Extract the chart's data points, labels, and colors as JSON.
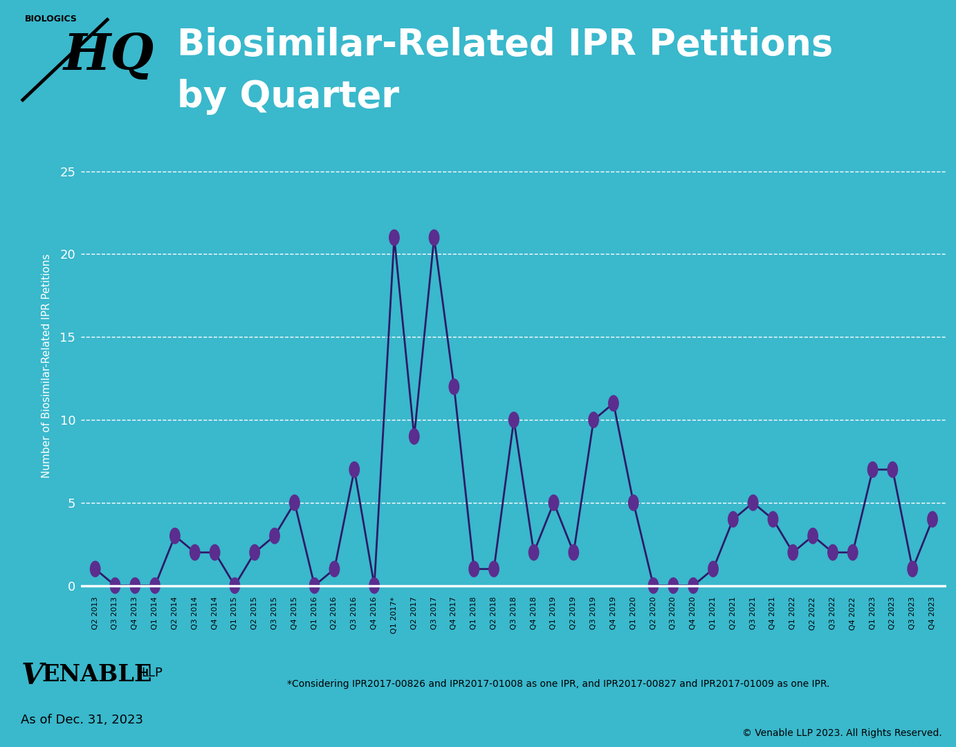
{
  "title_line1": "Biosimilar-Related IPR Petitions",
  "title_line2": "by Quarter",
  "ylabel": "Number of Biosimilar-Related IPR Petitions",
  "bg_color": "#3ab8cc",
  "header_bg": "#2fa8bc",
  "line_color": "#2d1b69",
  "marker_color": "#5b2d8e",
  "grid_color": "white",
  "text_color": "white",
  "tick_label_color": "black",
  "ylim": [
    -0.5,
    27
  ],
  "yticks": [
    0,
    5,
    10,
    15,
    20,
    25
  ],
  "footnote": "*Considering IPR2017-00826 and IPR2017-01008 as one IPR, and IPR2017-00827 and IPR2017-01009 as one IPR.",
  "date_label": "As of Dec. 31, 2023",
  "copyright": "© Venable LLP 2023. All Rights Reserved.",
  "quarters": [
    "Q2 2013",
    "Q3 2013",
    "Q4 2013",
    "Q1 2014",
    "Q2 2014",
    "Q3 2014",
    "Q4 2014",
    "Q1 2015",
    "Q2 2015",
    "Q3 2015",
    "Q4 2015",
    "Q1 2016",
    "Q2 2016",
    "Q3 2016",
    "Q4 2016",
    "Q1 2017*",
    "Q2 2017",
    "Q3 2017",
    "Q4 2017",
    "Q1 2018",
    "Q2 2018",
    "Q3 2018",
    "Q4 2018",
    "Q1 2019",
    "Q2 2019",
    "Q3 2019",
    "Q4 2019",
    "Q1 2020",
    "Q2 2020",
    "Q3 2020",
    "Q4 2020",
    "Q1 2021",
    "Q2 2021",
    "Q3 2021",
    "Q4 2021",
    "Q1 2022",
    "Q2 2022",
    "Q3 2022",
    "Q4 2022",
    "Q1 2023",
    "Q2 2023",
    "Q3 2023",
    "Q4 2023"
  ],
  "values": [
    1,
    0,
    0,
    0,
    3,
    2,
    2,
    0,
    2,
    3,
    5,
    0,
    1,
    7,
    0,
    21,
    9,
    21,
    12,
    1,
    1,
    10,
    2,
    5,
    2,
    10,
    11,
    5,
    0,
    0,
    0,
    1,
    4,
    5,
    4,
    2,
    3,
    2,
    2,
    7,
    7,
    1,
    4
  ]
}
